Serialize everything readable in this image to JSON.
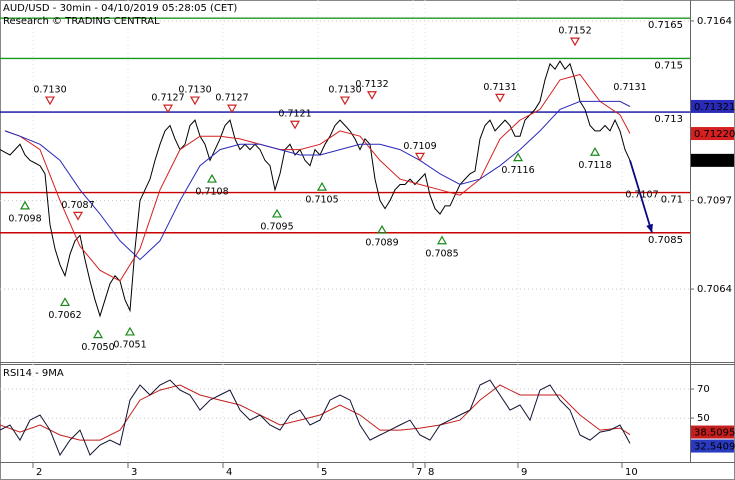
{
  "chart_data": [
    {
      "type": "line",
      "title": "AUD/USD - 30min - 04/10/2019 05:28:05 (CET)",
      "subtitle": "Research © TRADING CENTRAL",
      "xlim": [
        0,
        138
      ],
      "ylim": [
        0.70368,
        0.71718
      ],
      "yticks": [
        0.7164,
        0.7097,
        0.7064
      ],
      "grid": true,
      "series": [
        {
          "color": "#000000",
          "values": [
            0.7116,
            0.7115,
            0.7114,
            0.7116,
            0.7118,
            0.7114,
            0.7112,
            0.7111,
            0.711,
            0.7107,
            0.7088,
            0.7079,
            0.7073,
            0.7069,
            0.7077,
            0.7082,
            0.7084,
            0.7075,
            0.7067,
            0.706,
            0.7054,
            0.706,
            0.7066,
            0.7069,
            0.7067,
            0.706,
            0.7056,
            0.7079,
            0.7097,
            0.7101,
            0.7105,
            0.7112,
            0.7118,
            0.7123,
            0.7125,
            0.712,
            0.7116,
            0.7118,
            0.7125,
            0.7127,
            0.7121,
            0.7118,
            0.7112,
            0.7116,
            0.712,
            0.7125,
            0.7127,
            0.712,
            0.7116,
            0.7118,
            0.7116,
            0.7118,
            0.7116,
            0.7112,
            0.711,
            0.7101,
            0.7107,
            0.7116,
            0.7118,
            0.7114,
            0.7116,
            0.7112,
            0.711,
            0.7116,
            0.7114,
            0.7118,
            0.7121,
            0.7125,
            0.7127,
            0.7125,
            0.7123,
            0.712,
            0.7116,
            0.712,
            0.7118,
            0.7105,
            0.7097,
            0.7094,
            0.7097,
            0.7101,
            0.7103,
            0.7103,
            0.7105,
            0.7103,
            0.7105,
            0.7107,
            0.7099,
            0.7094,
            0.7092,
            0.7095,
            0.7095,
            0.7099,
            0.7103,
            0.7105,
            0.7107,
            0.7108,
            0.712,
            0.7125,
            0.7127,
            0.7123,
            0.7125,
            0.7127,
            0.7125,
            0.7121,
            0.7121,
            0.7127,
            0.7129,
            0.7131,
            0.7134,
            0.7142,
            0.7148,
            0.7146,
            0.7149,
            0.7146,
            0.7148,
            0.7142,
            0.7134,
            0.7131,
            0.7125,
            0.7123,
            0.7123,
            0.7125,
            0.7123,
            0.7127,
            0.7123,
            0.7116,
            0.7112
          ]
        },
        {
          "color": "#d42020",
          "x": [
            1,
            4,
            8,
            12,
            16,
            20,
            24,
            28,
            32,
            36,
            40,
            44,
            48,
            52,
            56,
            60,
            64,
            68,
            72,
            76,
            80,
            84,
            88,
            92,
            96,
            100,
            104,
            108,
            112,
            116,
            120,
            124,
            126
          ],
          "values": [
            0.7123,
            0.7121,
            0.7116,
            0.7097,
            0.708,
            0.7071,
            0.7067,
            0.7079,
            0.7101,
            0.7116,
            0.7121,
            0.7121,
            0.712,
            0.7118,
            0.7116,
            0.7116,
            0.7118,
            0.7123,
            0.7121,
            0.7112,
            0.7105,
            0.7103,
            0.7101,
            0.7099,
            0.7105,
            0.712,
            0.7127,
            0.7131,
            0.7142,
            0.7144,
            0.7134,
            0.7129,
            0.7122
          ],
          "last_label": "0.71220"
        },
        {
          "color": "#2a2ab8",
          "x": [
            1,
            4,
            8,
            12,
            16,
            20,
            24,
            28,
            32,
            36,
            40,
            44,
            48,
            52,
            56,
            60,
            64,
            68,
            72,
            76,
            80,
            84,
            88,
            92,
            96,
            100,
            104,
            108,
            112,
            116,
            120,
            124,
            126
          ],
          "values": [
            0.7123,
            0.7121,
            0.7118,
            0.7112,
            0.7101,
            0.7092,
            0.7082,
            0.7075,
            0.7082,
            0.7097,
            0.711,
            0.7116,
            0.7118,
            0.7118,
            0.7116,
            0.7114,
            0.7114,
            0.7116,
            0.7118,
            0.7118,
            0.7116,
            0.7112,
            0.7107,
            0.7103,
            0.7105,
            0.711,
            0.7116,
            0.7123,
            0.7131,
            0.7134,
            0.7134,
            0.7134,
            0.71321
          ]
        }
      ],
      "levels": [
        {
          "value": 0.7165,
          "color": "#1a9a1a"
        },
        {
          "value": 0.715,
          "color": "#1a9a1a"
        },
        {
          "value": 0.713,
          "color": "#0a0aa0"
        },
        {
          "value": 0.71,
          "color": "#cc0000"
        },
        {
          "value": 0.7085,
          "color": "#cc0000"
        }
      ],
      "marker_colors": {
        "down": "#cc2222",
        "up": "#1a8a1a"
      },
      "annotations": [
        {
          "x": 10,
          "value": 0.713,
          "label": "0.7130",
          "direction": "down"
        },
        {
          "x": 15.6,
          "value": 0.7087,
          "label": "0.7087",
          "direction": "down"
        },
        {
          "x": 33.6,
          "value": 0.7127,
          "label": "0.7127",
          "direction": "down"
        },
        {
          "x": 39,
          "value": 0.713,
          "label": "0.7130",
          "direction": "down"
        },
        {
          "x": 46.4,
          "value": 0.7127,
          "label": "0.7127",
          "direction": "down"
        },
        {
          "x": 59,
          "value": 0.7121,
          "label": "0.7121",
          "direction": "down"
        },
        {
          "x": 69,
          "value": 0.713,
          "label": "0.7130",
          "direction": "down"
        },
        {
          "x": 74.4,
          "value": 0.7132,
          "label": "0.7132",
          "direction": "down"
        },
        {
          "x": 84,
          "value": 0.7109,
          "label": "0.7109",
          "direction": "down"
        },
        {
          "x": 100,
          "value": 0.7131,
          "label": "0.7131",
          "direction": "down"
        },
        {
          "x": 115,
          "value": 0.7152,
          "label": "0.7152",
          "direction": "down"
        },
        {
          "x": 126,
          "value": 0.7131,
          "label": "0.7131",
          "direction": "down",
          "marker": false
        },
        {
          "x": 5,
          "value": 0.7098,
          "label": "0.7098",
          "direction": "up"
        },
        {
          "x": 13,
          "value": 0.7062,
          "label": "0.7062",
          "direction": "up"
        },
        {
          "x": 19.6,
          "value": 0.705,
          "label": "0.7050",
          "direction": "up"
        },
        {
          "x": 26,
          "value": 0.7051,
          "label": "0.7051",
          "direction": "up"
        },
        {
          "x": 42.4,
          "value": 0.7108,
          "label": "0.7108",
          "direction": "up"
        },
        {
          "x": 55.4,
          "value": 0.7095,
          "label": "0.7095",
          "direction": "up"
        },
        {
          "x": 64.4,
          "value": 0.7105,
          "label": "0.7105",
          "direction": "up"
        },
        {
          "x": 76.4,
          "value": 0.7089,
          "label": "0.7089",
          "direction": "up"
        },
        {
          "x": 88.4,
          "value": 0.7085,
          "label": "0.7085",
          "direction": "up"
        },
        {
          "x": 103.6,
          "value": 0.7116,
          "label": "0.7116",
          "direction": "up"
        },
        {
          "x": 119,
          "value": 0.7118,
          "label": "0.7118",
          "direction": "up"
        },
        {
          "x": 128.4,
          "value": 0.7107,
          "label": "0.7107",
          "direction": "up",
          "marker": false
        }
      ],
      "projection": {
        "color": "#0a0a80",
        "x": [
          126,
          130.4
        ],
        "values": [
          0.7112,
          0.7085
        ]
      }
    },
    {
      "type": "line",
      "title": "RSI14 - 9MA",
      "xlim": [
        0,
        138
      ],
      "ylim": [
        19.7,
        86.6
      ],
      "yticks": [
        70,
        50
      ],
      "grid": true,
      "xticks": [
        {
          "value": 6.6,
          "label": "2"
        },
        {
          "value": 25.6,
          "label": "3"
        },
        {
          "value": 44.6,
          "label": "4"
        },
        {
          "value": 63.6,
          "label": "5"
        },
        {
          "value": 82.6,
          "label": "7"
        },
        {
          "value": 85,
          "label": "8"
        },
        {
          "value": 103.6,
          "label": "9"
        },
        {
          "value": 124.4,
          "label": "10"
        }
      ],
      "series": [
        {
          "color": "#c41e1e",
          "x": [
            0,
            4,
            8,
            12,
            16,
            20,
            24,
            28,
            32,
            36,
            40,
            44,
            48,
            52,
            56,
            60,
            64,
            68,
            72,
            76,
            80,
            84,
            88,
            92,
            96,
            100,
            104,
            108,
            112,
            116,
            120,
            124,
            126
          ],
          "values": [
            45.2,
            40.3,
            45.2,
            38.3,
            34.8,
            34.8,
            41.7,
            62.4,
            69.3,
            72.8,
            65.9,
            62.4,
            59.0,
            52.1,
            45.2,
            48.6,
            52.1,
            59.0,
            52.1,
            41.7,
            41.7,
            43.1,
            45.2,
            48.6,
            62.4,
            72.8,
            65.9,
            65.9,
            65.9,
            52.1,
            41.7,
            43.1,
            38.5095
          ]
        },
        {
          "color": "#111133",
          "box_color": "#2a3ac0",
          "x": [
            0,
            2,
            4,
            6,
            8,
            10,
            12,
            14,
            16,
            18,
            20,
            22,
            24,
            26,
            28,
            30,
            32,
            34,
            36,
            38,
            40,
            42,
            44,
            46,
            48,
            50,
            52,
            54,
            56,
            58,
            60,
            62,
            64,
            66,
            68,
            70,
            72,
            74,
            76,
            78,
            80,
            82,
            84,
            86,
            88,
            90,
            92,
            94,
            96,
            98,
            100,
            102,
            104,
            106,
            108,
            110,
            112,
            114,
            116,
            118,
            120,
            122,
            124,
            126
          ],
          "values": [
            41.7,
            45.2,
            34.8,
            48.6,
            52.1,
            41.7,
            24.5,
            34.8,
            41.7,
            24.5,
            31.4,
            34.8,
            31.4,
            62.4,
            72.8,
            65.9,
            72.8,
            76.2,
            69.3,
            65.9,
            55.5,
            62.4,
            65.9,
            69.3,
            55.5,
            48.6,
            52.1,
            45.2,
            41.7,
            52.1,
            55.5,
            45.2,
            48.6,
            62.4,
            65.9,
            62.4,
            45.2,
            34.8,
            38.3,
            41.7,
            45.2,
            48.6,
            38.3,
            34.8,
            45.2,
            48.6,
            52.1,
            55.5,
            72.8,
            76.2,
            65.9,
            55.5,
            59.0,
            48.6,
            69.3,
            72.8,
            62.4,
            55.5,
            38.3,
            34.8,
            40.3,
            41.7,
            45.2,
            32.5409
          ]
        }
      ]
    }
  ]
}
